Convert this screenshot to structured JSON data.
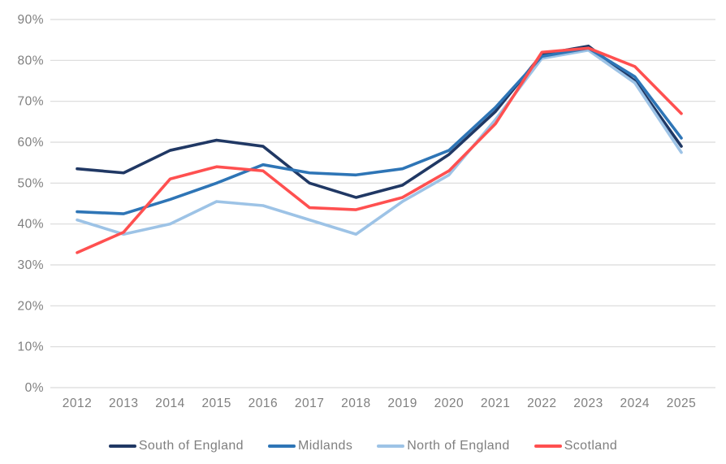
{
  "chart_data": {
    "type": "line",
    "title": "",
    "xlabel": "",
    "ylabel": "",
    "xtick_labels": [
      "2012",
      "2013",
      "2014",
      "2015",
      "2016",
      "2017",
      "2018",
      "2019",
      "2020",
      "2021",
      "2022",
      "2023",
      "2024",
      "2025"
    ],
    "ytick_labels": [
      "0%",
      "10%",
      "20%",
      "30%",
      "40%",
      "50%",
      "60%",
      "70%",
      "80%",
      "90%"
    ],
    "ylim": [
      0,
      90
    ],
    "ytick_step": 10,
    "grid": true,
    "legend_position": "bottom",
    "series": [
      {
        "name": "South of England",
        "color": "#203864",
        "values": [
          53.5,
          52.5,
          58,
          60.5,
          59,
          50,
          46.5,
          49.5,
          57,
          67.5,
          81.5,
          83.5,
          75,
          59
        ]
      },
      {
        "name": "Midlands",
        "color": "#2E75B6",
        "values": [
          43,
          42.5,
          46,
          50,
          54.5,
          52.5,
          52,
          53.5,
          58,
          68.5,
          81,
          83,
          76,
          61
        ]
      },
      {
        "name": "North of England",
        "color": "#9DC3E6",
        "values": [
          41,
          37.5,
          40,
          45.5,
          44.5,
          41,
          37.5,
          45.5,
          52,
          65.5,
          80.5,
          82.5,
          74.5,
          57.5
        ]
      },
      {
        "name": "Scotland",
        "color": "#FF5050",
        "values": [
          33,
          38,
          51,
          54,
          53,
          44,
          43.5,
          46.5,
          53,
          64.5,
          82,
          83,
          78.5,
          67
        ]
      }
    ]
  },
  "styles": {
    "grid_color": "#D9D9D9",
    "label_color": "#7F7F7F",
    "background": "#FFFFFF"
  }
}
